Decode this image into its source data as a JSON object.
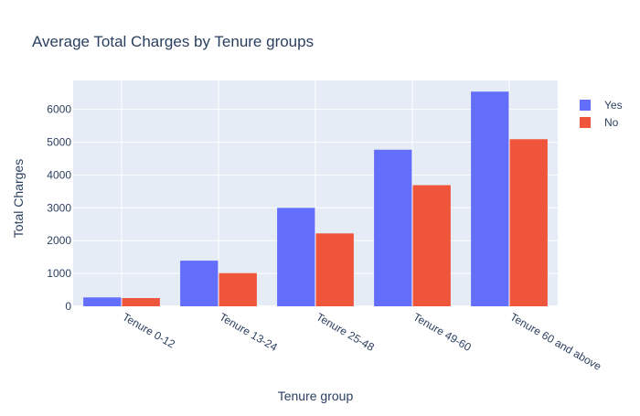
{
  "chart_data": {
    "type": "bar",
    "title": "Average Total Charges by Tenure groups",
    "xlabel": "Tenure group",
    "ylabel": "Total Charges",
    "categories": [
      "Tenure 0-12",
      "Tenure 13-24",
      "Tenure 25-48",
      "Tenure 49-60",
      "Tenure 60 and above"
    ],
    "series": [
      {
        "name": "Yes",
        "color": "#636efa",
        "values": [
          270,
          1390,
          3000,
          4770,
          6540
        ]
      },
      {
        "name": "No",
        "color": "#ef553b",
        "values": [
          250,
          1010,
          2220,
          3690,
          5090
        ]
      }
    ],
    "ylim": [
      0,
      6880
    ],
    "yticks": [
      0,
      1000,
      2000,
      3000,
      4000,
      5000,
      6000
    ],
    "ytick_labels": [
      "0",
      "1000",
      "2000",
      "3000",
      "4000",
      "5000",
      "6000"
    ],
    "grid": true,
    "legend_position": "top-right",
    "background": "#ffffff",
    "plot_background": "#e5ecf6"
  }
}
